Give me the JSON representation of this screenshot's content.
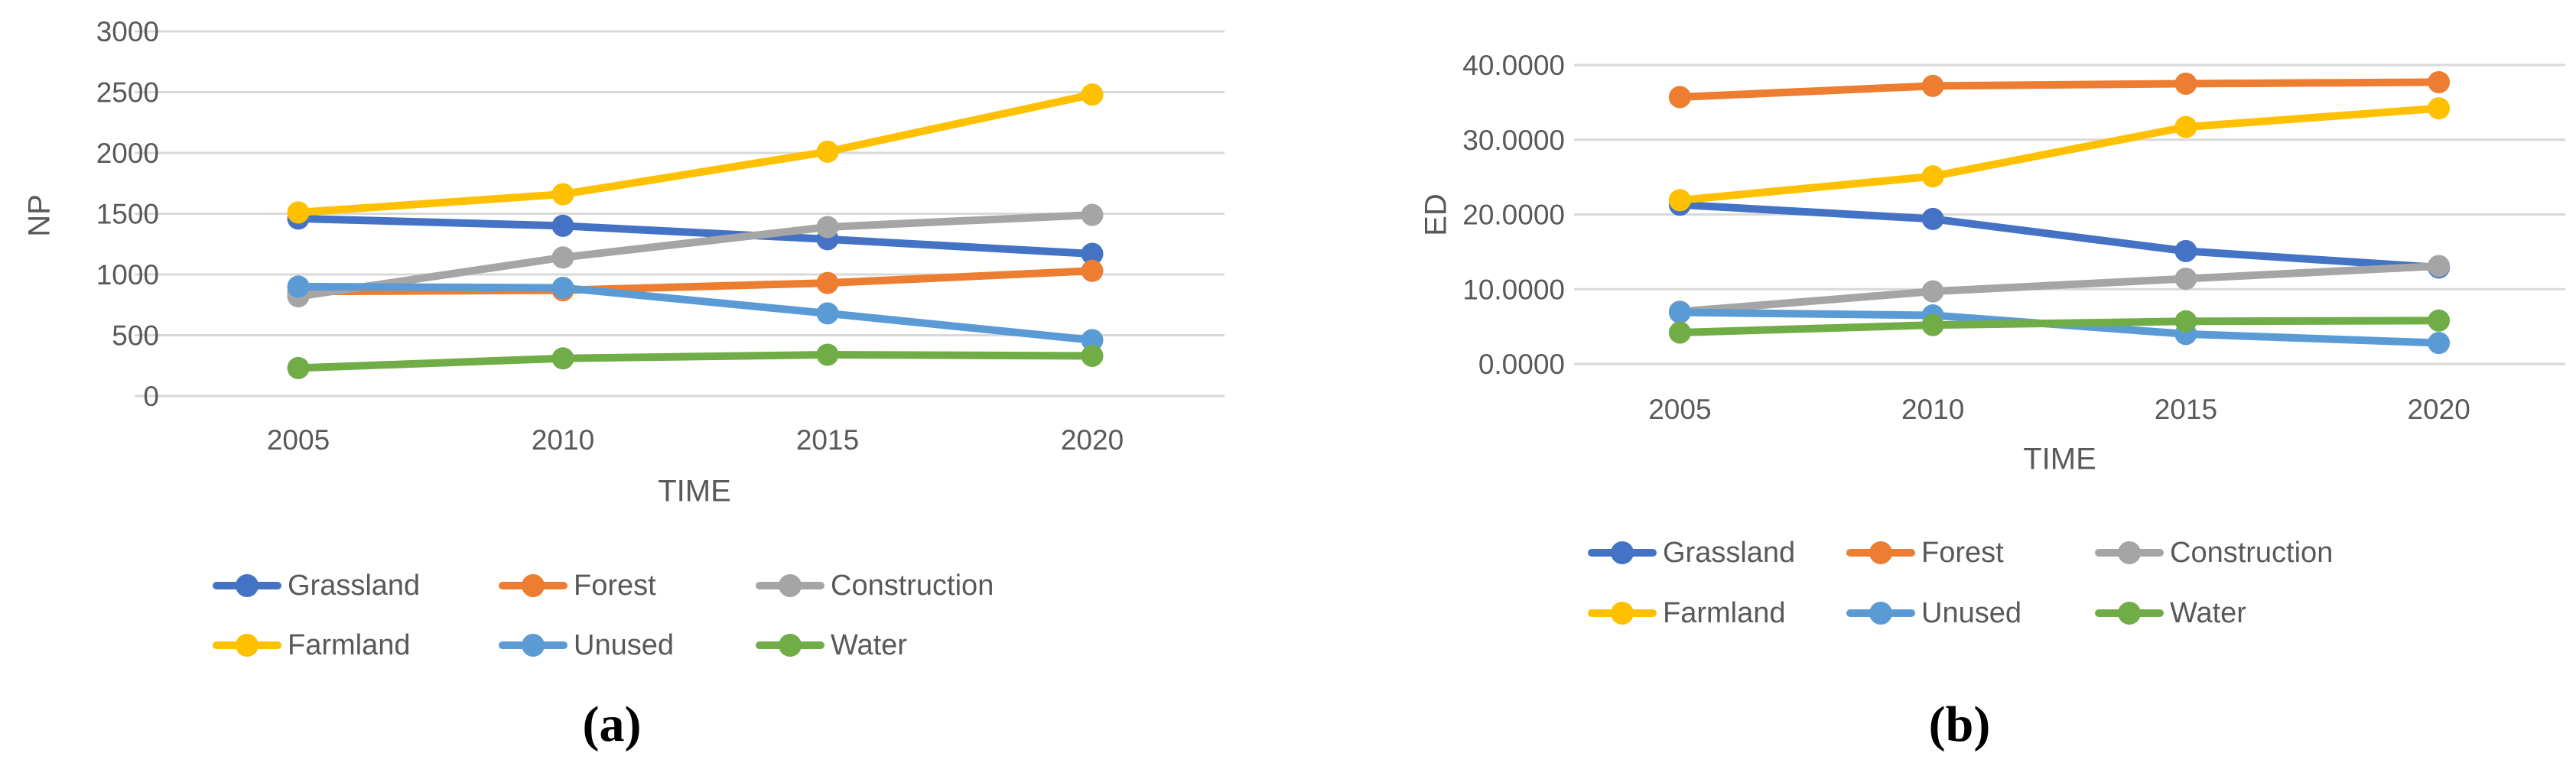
{
  "figure": {
    "background_color": "#ffffff",
    "gridline_color": "#d9d9d9",
    "tick_text_color": "#595959",
    "caption_a": "(a)",
    "caption_b": "(b)"
  },
  "chart_data": [
    {
      "type": "line",
      "panel": "a",
      "caption": "(a)",
      "title": "",
      "xlabel": "TIME",
      "ylabel": "NP",
      "categories": [
        "2005",
        "2010",
        "2015",
        "2020"
      ],
      "ylim": [
        0,
        3000
      ],
      "y_ticks": [
        0,
        500,
        1000,
        1500,
        2000,
        2500,
        3000
      ],
      "y_tick_labels": [
        "0",
        "500",
        "1000",
        "1500",
        "2000",
        "2500",
        "3000"
      ],
      "grid": true,
      "legend_position": "bottom",
      "marker": "circle",
      "series": [
        {
          "name": "Grassland",
          "color": "#4472C4",
          "values": [
            1460,
            1400,
            1290,
            1170
          ]
        },
        {
          "name": "Forest",
          "color": "#ED7D31",
          "values": [
            860,
            870,
            930,
            1030
          ]
        },
        {
          "name": "Construction",
          "color": "#A5A5A5",
          "values": [
            820,
            1140,
            1390,
            1490
          ]
        },
        {
          "name": "Farmland",
          "color": "#FFC000",
          "values": [
            1510,
            1660,
            2010,
            2480
          ]
        },
        {
          "name": "Unused",
          "color": "#5B9BD5",
          "values": [
            900,
            890,
            680,
            460
          ]
        },
        {
          "name": "Water",
          "color": "#70AD47",
          "values": [
            230,
            310,
            340,
            330
          ]
        }
      ]
    },
    {
      "type": "line",
      "panel": "b",
      "caption": "(b)",
      "title": "",
      "xlabel": "TIME",
      "ylabel": "ED",
      "categories": [
        "2005",
        "2010",
        "2015",
        "2020"
      ],
      "ylim": [
        0,
        40
      ],
      "y_ticks": [
        0,
        10,
        20,
        30,
        40
      ],
      "y_tick_labels": [
        "0.0000",
        "10.0000",
        "20.0000",
        "30.0000",
        "40.0000"
      ],
      "grid": true,
      "legend_position": "bottom",
      "marker": "circle",
      "series": [
        {
          "name": "Grassland",
          "color": "#4472C4",
          "values": [
            21.3,
            19.4,
            15.1,
            12.9
          ]
        },
        {
          "name": "Forest",
          "color": "#ED7D31",
          "values": [
            35.7,
            37.2,
            37.5,
            37.7
          ]
        },
        {
          "name": "Construction",
          "color": "#A5A5A5",
          "values": [
            7.0,
            9.7,
            11.4,
            13.1
          ]
        },
        {
          "name": "Farmland",
          "color": "#FFC000",
          "values": [
            21.9,
            25.1,
            31.7,
            34.2
          ]
        },
        {
          "name": "Unused",
          "color": "#5B9BD5",
          "values": [
            6.9,
            6.5,
            4.0,
            2.8
          ]
        },
        {
          "name": "Water",
          "color": "#70AD47",
          "values": [
            4.2,
            5.2,
            5.7,
            5.8
          ]
        }
      ]
    }
  ]
}
